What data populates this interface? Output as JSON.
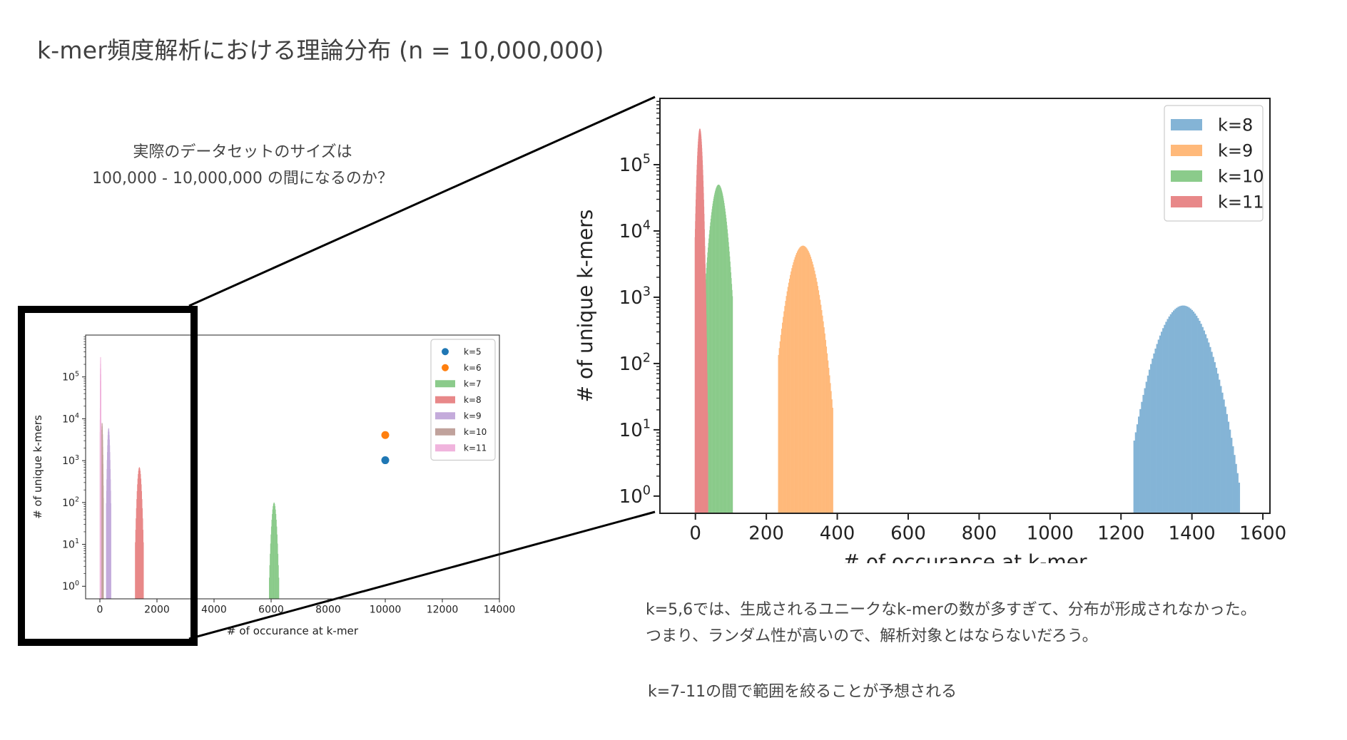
{
  "page": {
    "title": "k-mer頻度解析における理論分布 (n = 10,000,000)",
    "question_line1": "実際のデータセットのサイズは",
    "question_line2": "100,000 - 10,000,000 の間になるのか？",
    "conclusion_line1": "k=5,6では、生成されるユニークなk-merの数が多すぎて、分布が形成されなかった。",
    "conclusion_line2": "つまり、ランダム性が高いので、解析対象とはならないだろう。",
    "conclusion_line3": "k=7-11の間で範囲を絞ることが予想される"
  },
  "chart_data": [
    {
      "type": "scatter+histogram",
      "xlabel": "# of occurance at k-mer",
      "ylabel": "# of unique k-mers",
      "yscale": "log",
      "xlim": [
        -500,
        14000
      ],
      "ylim": [
        0.5,
        1000000
      ],
      "xticks": [
        "0",
        "2000",
        "4000",
        "6000",
        "8000",
        "10000",
        "12000",
        "14000"
      ],
      "yticks": [
        "10^0",
        "10^1",
        "10^2",
        "10^3",
        "10^4",
        "10^5"
      ],
      "legend_position": "top-right",
      "series": [
        {
          "name": "k=5",
          "kind": "point",
          "color": "#1f77b4",
          "x": 10000,
          "y": 1024
        },
        {
          "name": "k=6",
          "kind": "point",
          "color": "#ff7f0e",
          "x": 10000,
          "y": 4096
        },
        {
          "name": "k=7",
          "kind": "hist",
          "color": "#2ca02c",
          "center": 6100,
          "width": 350,
          "peak": 100
        },
        {
          "name": "k=8",
          "kind": "hist",
          "color": "#d62728",
          "center": 1380,
          "width": 300,
          "peak": 700
        },
        {
          "name": "k=9",
          "kind": "hist",
          "color": "#9467bd",
          "center": 300,
          "width": 170,
          "peak": 6000
        },
        {
          "name": "k=10",
          "kind": "hist",
          "color": "#8c564b",
          "center": 70,
          "width": 100,
          "peak": 8000
        },
        {
          "name": "k=11",
          "kind": "hist",
          "color": "#e377c2",
          "center": 15,
          "width": 40,
          "peak": 300000
        }
      ]
    },
    {
      "type": "histogram",
      "xlabel": "# of occurance at k-mer",
      "ylabel": "# of unique k-mers",
      "yscale": "log",
      "xlim": [
        -100,
        1620
      ],
      "ylim": [
        0.55,
        1000000
      ],
      "xticks": [
        "0",
        "200",
        "400",
        "600",
        "800",
        "1000",
        "1200",
        "1400",
        "1600"
      ],
      "yticks": [
        "10^0",
        "10^1",
        "10^2",
        "10^3",
        "10^4",
        "10^5"
      ],
      "legend_position": "top-right",
      "series": [
        {
          "name": "k=8",
          "color": "#1f77b4",
          "center": 1375,
          "width": 270,
          "peak": 750,
          "xmin": 1235,
          "xmax": 1535
        },
        {
          "name": "k=9",
          "color": "#ff7f0e",
          "center": 303,
          "width": 150,
          "peak": 6000,
          "xmin": 233,
          "xmax": 388
        },
        {
          "name": "k=10",
          "color": "#2ca02c",
          "center": 65,
          "width": 85,
          "peak": 50000,
          "xmin": 27,
          "xmax": 105
        },
        {
          "name": "k=11",
          "color": "#d62728",
          "center": 12,
          "width": 30,
          "peak": 350000,
          "xmin": -2,
          "xmax": 35
        }
      ]
    }
  ]
}
